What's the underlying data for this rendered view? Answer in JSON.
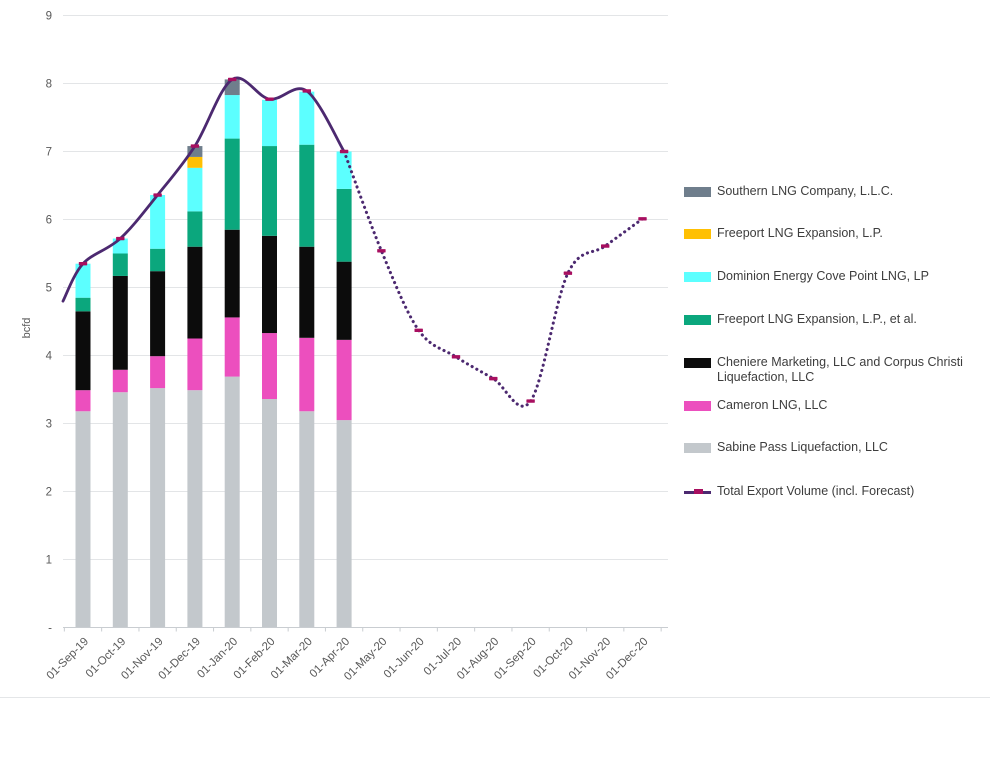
{
  "chart_data": {
    "type": "combo-stacked-bar-line",
    "ylabel": "bcfd",
    "y_axis": {
      "min": 0,
      "max": 9,
      "tick_labels": [
        "-",
        "1",
        "2",
        "3",
        "4",
        "5",
        "6",
        "7",
        "8",
        "9"
      ],
      "grid": true
    },
    "categories": [
      "01-Sep-19",
      "01-Oct-19",
      "01-Nov-19",
      "01-Dec-19",
      "01-Jan-20",
      "01-Feb-20",
      "01-Mar-20",
      "01-Apr-20",
      "01-May-20",
      "01-Jun-20",
      "01-Jul-20",
      "01-Aug-20",
      "01-Sep-20",
      "01-Oct-20",
      "01-Nov-20",
      "01-Dec-20"
    ],
    "actual_month_count": 8,
    "stack_series": [
      {
        "name": "Sabine Pass Liquefaction, LLC",
        "color": "#c3c8cc",
        "values": [
          3.18,
          3.46,
          3.52,
          3.49,
          3.69,
          3.36,
          3.18,
          3.05,
          0,
          0,
          0,
          0,
          0,
          0,
          0,
          0
        ]
      },
      {
        "name": "Cameron LNG, LLC",
        "color": "#ec4fbe",
        "values": [
          0.31,
          0.33,
          0.47,
          0.76,
          0.87,
          0.97,
          1.08,
          1.18,
          0,
          0,
          0,
          0,
          0,
          0,
          0,
          0
        ]
      },
      {
        "name": "Cheniere Marketing, LLC and Corpus Christi Liquefaction, LLC",
        "color": "#0c0c0c",
        "values": [
          1.16,
          1.38,
          1.25,
          1.35,
          1.29,
          1.43,
          1.34,
          1.15,
          0,
          0,
          0,
          0,
          0,
          0,
          0,
          0
        ]
      },
      {
        "name": "Freeport LNG Expansion, L.P., et al.",
        "color": "#0ba77d",
        "values": [
          0.2,
          0.33,
          0.33,
          0.52,
          1.34,
          1.32,
          1.5,
          1.07,
          0,
          0,
          0,
          0,
          0,
          0,
          0,
          0
        ]
      },
      {
        "name": "Dominion Energy Cove Point LNG, LP",
        "color": "#5cffff",
        "values": [
          0.5,
          0.22,
          0.79,
          0.64,
          0.64,
          0.68,
          0.78,
          0.55,
          0,
          0,
          0,
          0,
          0,
          0,
          0,
          0
        ]
      },
      {
        "name": "Freeport LNG Expansion, L.P.",
        "color": "#ffc003",
        "values": [
          0,
          0,
          0,
          0.16,
          0,
          0,
          0,
          0,
          0,
          0,
          0,
          0,
          0,
          0,
          0,
          0
        ]
      },
      {
        "name": "Southern LNG Company, L.L.C.",
        "color": "#6f7e8c",
        "values": [
          0,
          0,
          0,
          0.16,
          0.23,
          0,
          0,
          0,
          0,
          0,
          0,
          0,
          0,
          0,
          0,
          0
        ]
      }
    ],
    "line_series": {
      "name": "Total Export Volume (incl. Forecast)",
      "color": "#4c2970",
      "marker_color": "#a80f60",
      "solid_point_count": 8,
      "lead_in_value": 4.8,
      "values": [
        5.35,
        5.72,
        6.36,
        7.08,
        8.06,
        7.77,
        7.89,
        7.0,
        5.54,
        4.37,
        3.98,
        3.66,
        3.33,
        5.21,
        5.61,
        6.01
      ]
    }
  },
  "legend": {
    "items": [
      {
        "label": "Southern LNG Company, L.L.C.",
        "color": "#6f7e8c",
        "type": "box"
      },
      {
        "label": "Freeport LNG Expansion, L.P.",
        "color": "#ffc003",
        "type": "box"
      },
      {
        "label": "Dominion Energy Cove Point LNG, LP",
        "color": "#5cffff",
        "type": "box"
      },
      {
        "label": "Freeport LNG Expansion, L.P., et al.",
        "color": "#0ba77d",
        "type": "box"
      },
      {
        "label": "Cheniere Marketing, LLC and Corpus Christi Liquefaction, LLC",
        "color": "#0c0c0c",
        "type": "box"
      },
      {
        "label": "Cameron LNG, LLC",
        "color": "#ec4fbe",
        "type": "box"
      },
      {
        "label": "Sabine Pass Liquefaction, LLC",
        "color": "#c3c8cc",
        "type": "box"
      },
      {
        "label": "Total Export Volume (incl. Forecast)",
        "color": "#4c2970",
        "marker_color": "#a80f60",
        "type": "line"
      }
    ]
  }
}
